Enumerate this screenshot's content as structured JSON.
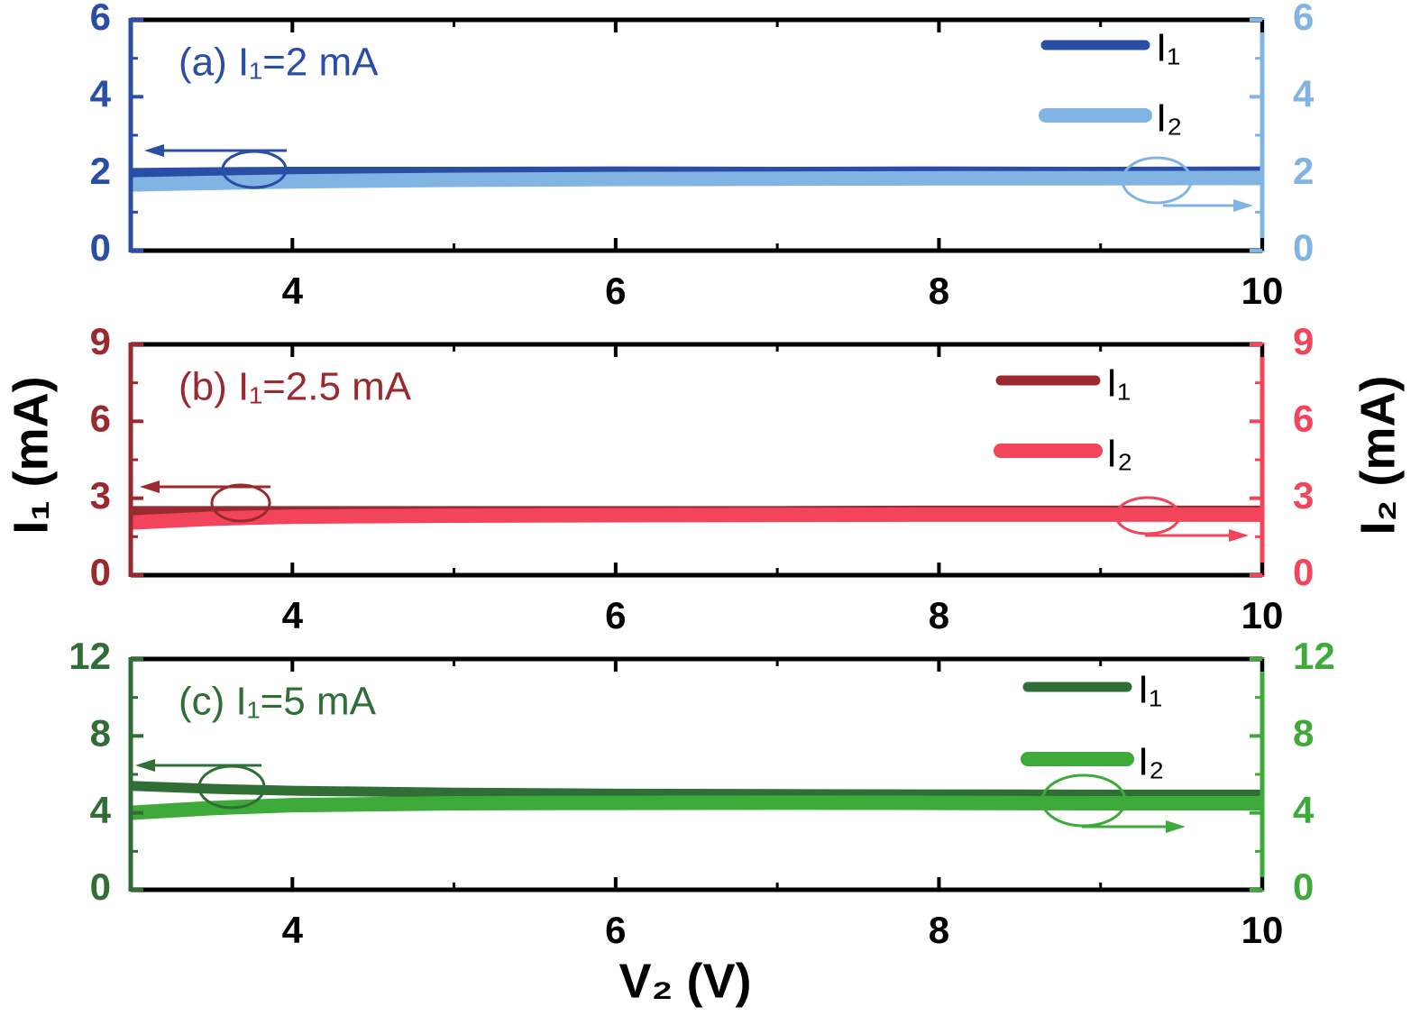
{
  "chart_data": [
    {
      "type": "line",
      "annotation": "(a) I₁=2 mA",
      "x": [
        3,
        3.5,
        4,
        5,
        6,
        7,
        8,
        9,
        10
      ],
      "series": [
        {
          "name": "I₁",
          "color": "#2a4ea5",
          "values": [
            2.02,
            2.04,
            2.05,
            2.05,
            2.06,
            2.05,
            2.06,
            2.05,
            2.06
          ]
        },
        {
          "name": "I₂",
          "color": "#82b4e3",
          "axis": "y2",
          "values": [
            1.72,
            1.76,
            1.8,
            1.84,
            1.86,
            1.87,
            1.88,
            1.88,
            1.89
          ]
        }
      ],
      "xlim": [
        3,
        10
      ],
      "xticks": [
        4,
        6,
        8,
        10
      ],
      "ylim": [
        0,
        6
      ],
      "yticks": [
        0,
        2,
        4,
        6
      ],
      "y2lim": [
        0,
        6
      ],
      "y2ticks": [
        0,
        2,
        4,
        6
      ],
      "legend": "upper right"
    },
    {
      "type": "line",
      "annotation": "(b) I₁=2.5 mA",
      "x": [
        3,
        3.5,
        4,
        5,
        6,
        7,
        8,
        9,
        10
      ],
      "series": [
        {
          "name": "I₁",
          "color": "#9b2a30",
          "values": [
            2.5,
            2.5,
            2.5,
            2.5,
            2.5,
            2.5,
            2.52,
            2.52,
            2.52
          ]
        },
        {
          "name": "I₂",
          "color": "#f2445a",
          "axis": "y2",
          "values": [
            2.05,
            2.2,
            2.28,
            2.32,
            2.34,
            2.35,
            2.36,
            2.36,
            2.36
          ]
        }
      ],
      "xlim": [
        3,
        10
      ],
      "xticks": [
        4,
        6,
        8,
        10
      ],
      "ylim": [
        0,
        9
      ],
      "yticks": [
        0,
        3,
        6,
        9
      ],
      "y2lim": [
        0,
        9
      ],
      "y2ticks": [
        0,
        3,
        6,
        9
      ],
      "legend": "upper right"
    },
    {
      "type": "line",
      "annotation": "(c) I₁=5 mA",
      "x": [
        3,
        3.5,
        4,
        5,
        6,
        7,
        8,
        9,
        10
      ],
      "series": [
        {
          "name": "I₁",
          "color": "#2f6e35",
          "values": [
            5.4,
            5.25,
            5.15,
            5.05,
            5.0,
            4.98,
            4.96,
            4.95,
            4.95
          ]
        },
        {
          "name": "I₂",
          "color": "#3daa3a",
          "axis": "y2",
          "values": [
            4.0,
            4.25,
            4.4,
            4.5,
            4.52,
            4.53,
            4.52,
            4.5,
            4.5
          ]
        }
      ],
      "xlim": [
        3,
        10
      ],
      "xticks": [
        4,
        6,
        8,
        10
      ],
      "ylim": [
        0,
        12
      ],
      "yticks": [
        0,
        4,
        8,
        12
      ],
      "y2lim": [
        0,
        12
      ],
      "y2ticks": [
        0,
        4,
        8,
        12
      ],
      "legend": "upper right"
    }
  ],
  "shared_axes": {
    "xlabel": "V₂ (V)",
    "ylabel": "I₁ (mA)",
    "y2label": "I₂ (mA)"
  }
}
